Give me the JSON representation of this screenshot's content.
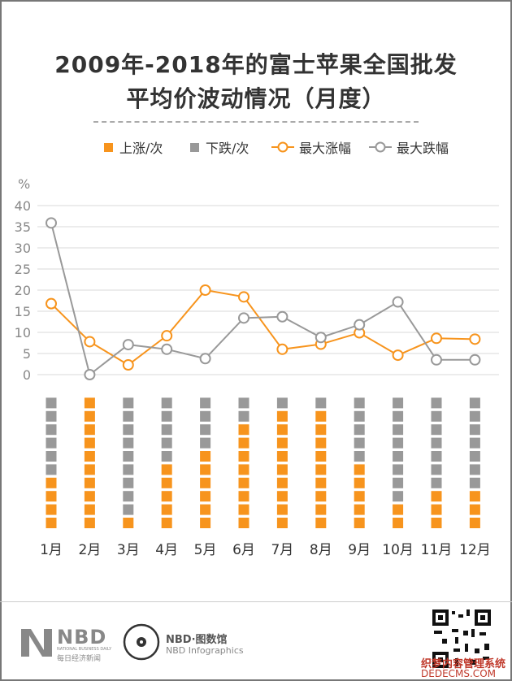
{
  "title_line1": "2009年-2018年的富士苹果全国批发",
  "title_line2": "平均价波动情况（月度）",
  "legend": {
    "up": "上涨/次",
    "down": "下跌/次",
    "max_up": "最大涨幅",
    "max_down": "最大跌幅"
  },
  "colors": {
    "up": "#f7941d",
    "down": "#999999",
    "grid": "#d9d9d9",
    "axis_text": "#888888"
  },
  "footer": {
    "nbd": "NBD",
    "nbd_en": "NATIONAL BUSINESS DAILY",
    "nbd_cn": "每日经济新闻",
    "infographics_cn": "NBD·图数馆",
    "infographics_en": "NBD Infographics",
    "watermark1": "织梦内容管理系统",
    "watermark2": "DEDECMS.COM"
  },
  "chart_data": {
    "type": "line",
    "ylabel": "%",
    "ylim": [
      0,
      40
    ],
    "yticks": [
      0,
      5,
      10,
      15,
      20,
      25,
      30,
      35,
      40
    ],
    "categories": [
      "1月",
      "2月",
      "3月",
      "4月",
      "5月",
      "6月",
      "7月",
      "8月",
      "9月",
      "10月",
      "11月",
      "12月"
    ],
    "series": [
      {
        "name": "最大涨幅",
        "values": [
          16.8,
          7.8,
          2.3,
          9.2,
          20,
          18.4,
          6,
          7.2,
          9.9,
          4.6,
          8.6,
          8.4
        ]
      },
      {
        "name": "最大跌幅",
        "values": [
          35.9,
          0,
          7.1,
          6,
          3.8,
          13.4,
          13.7,
          8.8,
          11.8,
          17.2,
          3.5,
          3.5
        ]
      }
    ],
    "counts": {
      "type": "bar",
      "total_per_month": 10,
      "series": [
        {
          "name": "上涨/次",
          "values": [
            4,
            10,
            1,
            5,
            6,
            8,
            9,
            9,
            5,
            2,
            3,
            3
          ]
        },
        {
          "name": "下跌/次",
          "values": [
            6,
            0,
            9,
            5,
            4,
            2,
            1,
            1,
            5,
            8,
            7,
            7
          ]
        }
      ]
    }
  }
}
